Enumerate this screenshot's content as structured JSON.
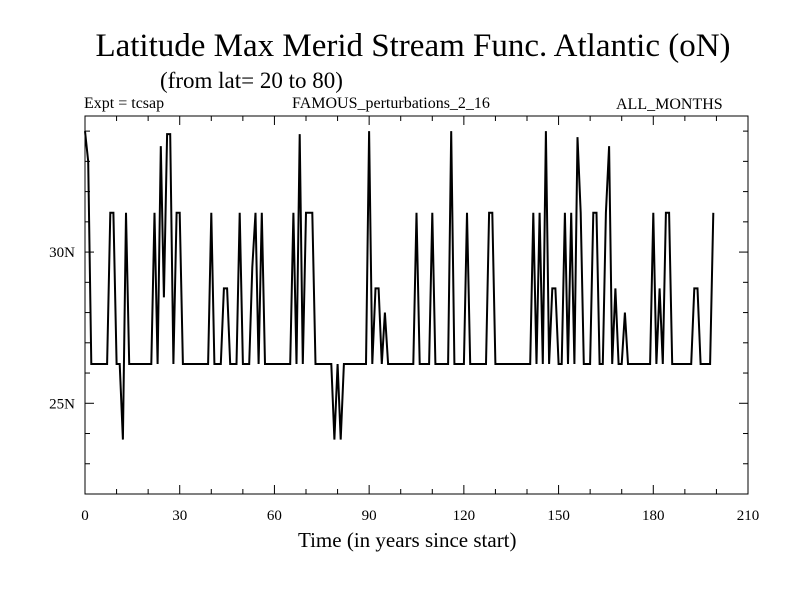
{
  "header": {
    "title": "Latitude Max Merid Stream Func. Atlantic (oN)",
    "subtitle": "(from lat= 20 to 80)",
    "expt": "Expt = tcsap",
    "run": "FAMOUS_perturbations_2_16",
    "months": "ALL_MONTHS"
  },
  "chart_data": {
    "type": "line",
    "title": "Latitude Max Merid Stream Func. Atlantic (oN)",
    "xlabel": "Time (in years since start)",
    "ylabel": "",
    "xlim": [
      0,
      210
    ],
    "ylim": [
      22.0,
      34.5
    ],
    "x_ticks": [
      0,
      30,
      60,
      90,
      120,
      150,
      180,
      210
    ],
    "x_tick_labels": [
      "0",
      "30",
      "60",
      "90",
      "120",
      "150",
      "180",
      "210"
    ],
    "y_ticks": [
      25,
      30
    ],
    "y_tick_labels": [
      "25N",
      "30N"
    ],
    "grid": false,
    "series": [
      {
        "values": [
          [
            0,
            34.0
          ],
          [
            1,
            33.0
          ],
          [
            2,
            26.3
          ],
          [
            3,
            26.3
          ],
          [
            4,
            26.3
          ],
          [
            5,
            26.3
          ],
          [
            6,
            26.3
          ],
          [
            7,
            26.3
          ],
          [
            8,
            31.3
          ],
          [
            9,
            31.3
          ],
          [
            10,
            26.3
          ],
          [
            11,
            26.3
          ],
          [
            12,
            23.8
          ],
          [
            13,
            31.3
          ],
          [
            14,
            26.3
          ],
          [
            15,
            26.3
          ],
          [
            16,
            26.3
          ],
          [
            17,
            26.3
          ],
          [
            18,
            26.3
          ],
          [
            19,
            26.3
          ],
          [
            20,
            26.3
          ],
          [
            21,
            26.3
          ],
          [
            22,
            31.3
          ],
          [
            23,
            26.3
          ],
          [
            24,
            33.5
          ],
          [
            25,
            28.5
          ],
          [
            26,
            33.9
          ],
          [
            27,
            33.9
          ],
          [
            28,
            26.3
          ],
          [
            29,
            31.3
          ],
          [
            30,
            31.3
          ],
          [
            31,
            26.3
          ],
          [
            32,
            26.3
          ],
          [
            33,
            26.3
          ],
          [
            34,
            26.3
          ],
          [
            35,
            26.3
          ],
          [
            36,
            26.3
          ],
          [
            37,
            26.3
          ],
          [
            38,
            26.3
          ],
          [
            39,
            26.3
          ],
          [
            40,
            31.3
          ],
          [
            41,
            26.3
          ],
          [
            42,
            26.3
          ],
          [
            43,
            26.3
          ],
          [
            44,
            28.8
          ],
          [
            45,
            28.8
          ],
          [
            46,
            26.3
          ],
          [
            47,
            26.3
          ],
          [
            48,
            26.3
          ],
          [
            49,
            31.3
          ],
          [
            50,
            26.3
          ],
          [
            51,
            26.3
          ],
          [
            52,
            26.3
          ],
          [
            53,
            29.5
          ],
          [
            54,
            31.3
          ],
          [
            55,
            26.3
          ],
          [
            56,
            31.3
          ],
          [
            57,
            26.3
          ],
          [
            58,
            26.3
          ],
          [
            59,
            26.3
          ],
          [
            60,
            26.3
          ],
          [
            61,
            26.3
          ],
          [
            62,
            26.3
          ],
          [
            63,
            26.3
          ],
          [
            64,
            26.3
          ],
          [
            65,
            26.3
          ],
          [
            66,
            31.3
          ],
          [
            67,
            26.3
          ],
          [
            68,
            33.9
          ],
          [
            69,
            26.3
          ],
          [
            70,
            31.3
          ],
          [
            71,
            31.3
          ],
          [
            72,
            31.3
          ],
          [
            73,
            26.3
          ],
          [
            74,
            26.3
          ],
          [
            75,
            26.3
          ],
          [
            76,
            26.3
          ],
          [
            77,
            26.3
          ],
          [
            78,
            26.3
          ],
          [
            79,
            23.8
          ],
          [
            80,
            26.3
          ],
          [
            81,
            23.8
          ],
          [
            82,
            26.3
          ],
          [
            83,
            26.3
          ],
          [
            84,
            26.3
          ],
          [
            85,
            26.3
          ],
          [
            86,
            26.3
          ],
          [
            87,
            26.3
          ],
          [
            88,
            26.3
          ],
          [
            89,
            26.3
          ],
          [
            90,
            34.0
          ],
          [
            91,
            26.3
          ],
          [
            92,
            28.8
          ],
          [
            93,
            28.8
          ],
          [
            94,
            26.3
          ],
          [
            95,
            28.0
          ],
          [
            96,
            26.3
          ],
          [
            97,
            26.3
          ],
          [
            98,
            26.3
          ],
          [
            99,
            26.3
          ],
          [
            100,
            26.3
          ],
          [
            101,
            26.3
          ],
          [
            102,
            26.3
          ],
          [
            103,
            26.3
          ],
          [
            104,
            26.3
          ],
          [
            105,
            31.3
          ],
          [
            106,
            26.3
          ],
          [
            107,
            26.3
          ],
          [
            108,
            26.3
          ],
          [
            109,
            26.3
          ],
          [
            110,
            31.3
          ],
          [
            111,
            26.3
          ],
          [
            112,
            26.3
          ],
          [
            113,
            26.3
          ],
          [
            114,
            26.3
          ],
          [
            115,
            26.3
          ],
          [
            116,
            34.0
          ],
          [
            117,
            26.3
          ],
          [
            118,
            26.3
          ],
          [
            119,
            26.3
          ],
          [
            120,
            26.3
          ],
          [
            121,
            31.3
          ],
          [
            122,
            26.3
          ],
          [
            123,
            26.3
          ],
          [
            124,
            26.3
          ],
          [
            125,
            26.3
          ],
          [
            126,
            26.3
          ],
          [
            127,
            26.3
          ],
          [
            128,
            31.3
          ],
          [
            129,
            31.3
          ],
          [
            130,
            26.3
          ],
          [
            131,
            26.3
          ],
          [
            132,
            26.3
          ],
          [
            133,
            26.3
          ],
          [
            134,
            26.3
          ],
          [
            135,
            26.3
          ],
          [
            136,
            26.3
          ],
          [
            137,
            26.3
          ],
          [
            138,
            26.3
          ],
          [
            139,
            26.3
          ],
          [
            140,
            26.3
          ],
          [
            141,
            26.3
          ],
          [
            142,
            31.3
          ],
          [
            143,
            26.3
          ],
          [
            144,
            31.3
          ],
          [
            145,
            26.3
          ],
          [
            146,
            34.0
          ],
          [
            147,
            26.3
          ],
          [
            148,
            28.8
          ],
          [
            149,
            28.8
          ],
          [
            150,
            26.3
          ],
          [
            151,
            26.3
          ],
          [
            152,
            31.3
          ],
          [
            153,
            26.3
          ],
          [
            154,
            31.3
          ],
          [
            155,
            26.3
          ],
          [
            156,
            33.8
          ],
          [
            157,
            31.3
          ],
          [
            158,
            26.3
          ],
          [
            159,
            26.3
          ],
          [
            160,
            26.3
          ],
          [
            161,
            31.3
          ],
          [
            162,
            31.3
          ],
          [
            163,
            26.3
          ],
          [
            164,
            26.3
          ],
          [
            165,
            31.3
          ],
          [
            166,
            33.5
          ],
          [
            167,
            26.3
          ],
          [
            168,
            28.8
          ],
          [
            169,
            26.3
          ],
          [
            170,
            26.3
          ],
          [
            171,
            28.0
          ],
          [
            172,
            26.3
          ],
          [
            173,
            26.3
          ],
          [
            174,
            26.3
          ],
          [
            175,
            26.3
          ],
          [
            176,
            26.3
          ],
          [
            177,
            26.3
          ],
          [
            178,
            26.3
          ],
          [
            179,
            26.3
          ],
          [
            180,
            31.3
          ],
          [
            181,
            26.3
          ],
          [
            182,
            28.8
          ],
          [
            183,
            26.3
          ],
          [
            184,
            31.3
          ],
          [
            185,
            31.3
          ],
          [
            186,
            26.3
          ],
          [
            187,
            26.3
          ],
          [
            188,
            26.3
          ],
          [
            189,
            26.3
          ],
          [
            190,
            26.3
          ],
          [
            191,
            26.3
          ],
          [
            192,
            26.3
          ],
          [
            193,
            28.8
          ],
          [
            194,
            28.8
          ],
          [
            195,
            26.3
          ],
          [
            196,
            26.3
          ],
          [
            197,
            26.3
          ],
          [
            198,
            26.3
          ],
          [
            199,
            31.3
          ]
        ]
      }
    ]
  }
}
